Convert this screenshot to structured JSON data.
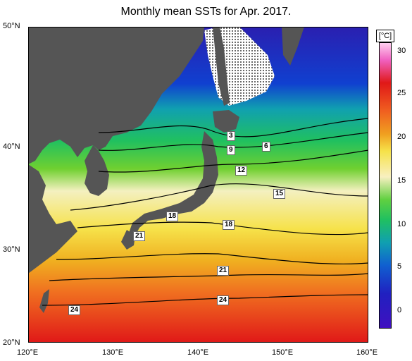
{
  "title": "Monthly mean SSTs for Apr. 2017.",
  "unit": "[°C]",
  "lat_labels": [
    "50°N",
    "40°N",
    "30°N",
    "20°N"
  ],
  "lon_labels": [
    "120°E",
    "130°E",
    "140°E",
    "150°E",
    "160°E"
  ],
  "colorbar_ticks": [
    "30",
    "25",
    "20",
    "15",
    "10",
    "5",
    "0"
  ],
  "isotherm_labels": [
    "3",
    "9",
    "6",
    "12",
    "15",
    "18",
    "18",
    "21",
    "21",
    "24",
    "24"
  ],
  "colors": {
    "land": "#555555",
    "ice": "#ffffff",
    "cold": "#2020c0",
    "warm": "#e82020"
  }
}
